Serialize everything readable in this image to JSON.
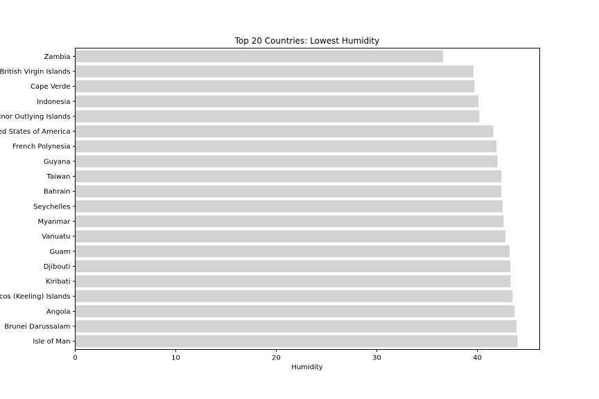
{
  "chart_data": {
    "type": "bar",
    "orientation": "horizontal",
    "title": "Top 20 Countries: Lowest Humidity",
    "xlabel": "Humidity",
    "ylabel": "",
    "xlim": [
      0,
      46.2
    ],
    "xticks": [
      0,
      10,
      20,
      30,
      40
    ],
    "grid": false,
    "bar_color": "#d3d3d3",
    "categories": [
      "Zambia",
      "British Virgin Islands",
      "Cape Verde",
      "Indonesia",
      "United States Minor Outlying Islands",
      "United States of America",
      "French Polynesia",
      "Guyana",
      "Taiwan",
      "Bahrain",
      "Seychelles",
      "Myanmar",
      "Vanuatu",
      "Guam",
      "Djibouti",
      "Kiribati",
      "Cocos (Keeling) Islands",
      "Angola",
      "Brunei Darussalam",
      "Isle of Man"
    ],
    "values": [
      36.6,
      39.6,
      39.7,
      40.1,
      40.2,
      41.6,
      41.9,
      42.0,
      42.4,
      42.4,
      42.5,
      42.6,
      42.8,
      43.2,
      43.3,
      43.3,
      43.5,
      43.7,
      43.9,
      44.0
    ]
  }
}
